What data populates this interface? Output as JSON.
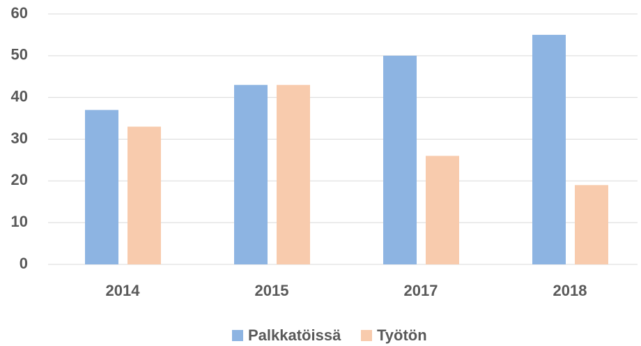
{
  "chart_data": {
    "type": "bar",
    "categories": [
      "2014",
      "2015",
      "2017",
      "2018"
    ],
    "series": [
      {
        "name": "Palkkatöissä",
        "color": "#8db4e2",
        "values": [
          37,
          43,
          50,
          55
        ]
      },
      {
        "name": "Työtön",
        "color": "#f8cbad",
        "values": [
          33,
          43,
          26,
          19
        ]
      }
    ],
    "ylim": [
      0,
      60
    ],
    "yticks": [
      0,
      10,
      20,
      30,
      40,
      50,
      60
    ],
    "grid": true,
    "legend": "bottom"
  }
}
